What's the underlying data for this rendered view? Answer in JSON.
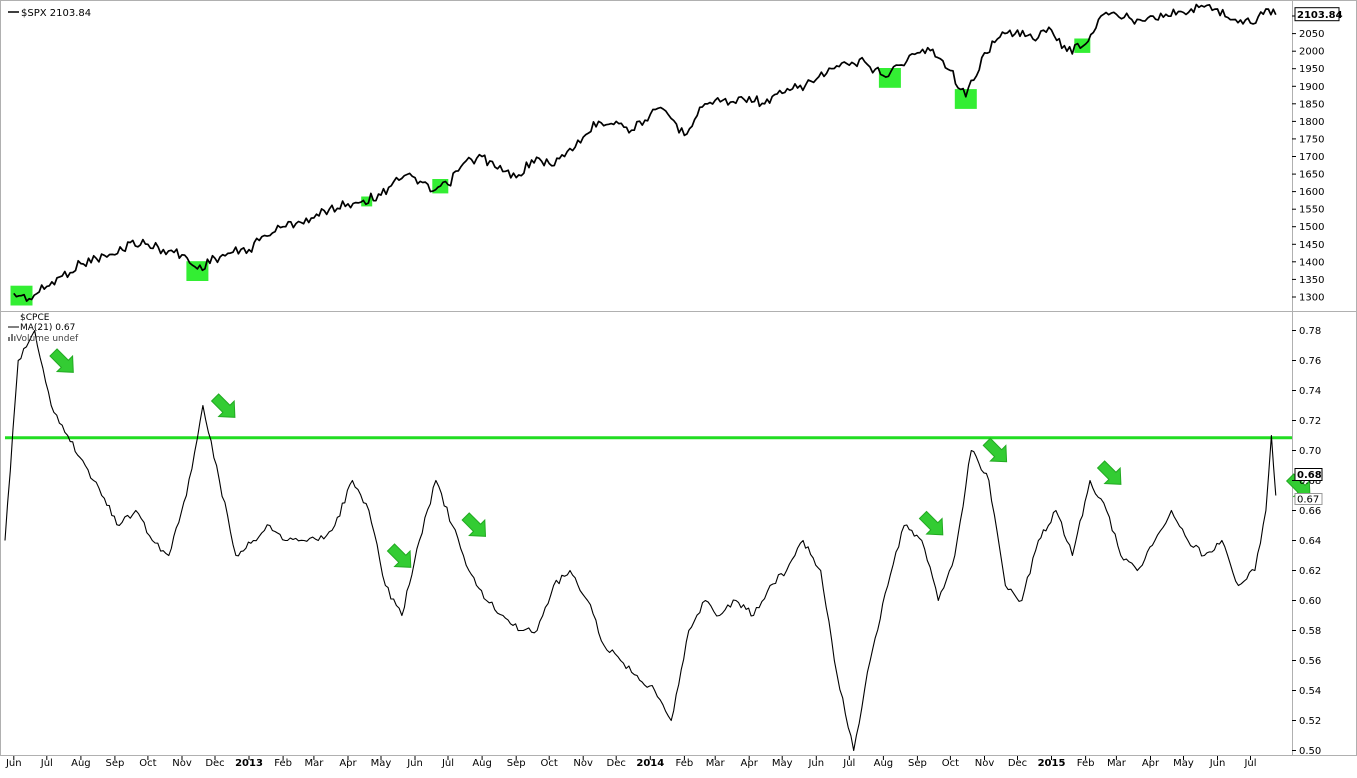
{
  "chart_data": [
    {
      "type": "line",
      "title": "$SPX 2103.84",
      "series": [
        {
          "name": "$SPX",
          "x": [
            "2012-06-01",
            "2012-06-15",
            "2012-07-01",
            "2012-07-15",
            "2012-08-01",
            "2012-08-15",
            "2012-09-01",
            "2012-09-15",
            "2012-10-01",
            "2012-10-15",
            "2012-11-01",
            "2012-11-15",
            "2012-12-01",
            "2012-12-15",
            "2013-01-01",
            "2013-01-15",
            "2013-02-01",
            "2013-02-15",
            "2013-03-01",
            "2013-03-15",
            "2013-04-01",
            "2013-04-15",
            "2013-05-01",
            "2013-05-15",
            "2013-06-01",
            "2013-06-15",
            "2013-07-01",
            "2013-07-15",
            "2013-08-01",
            "2013-08-15",
            "2013-09-01",
            "2013-09-15",
            "2013-10-01",
            "2013-10-15",
            "2013-11-01",
            "2013-11-15",
            "2013-12-01",
            "2013-12-15",
            "2014-01-01",
            "2014-01-15",
            "2014-02-01",
            "2014-02-15",
            "2014-03-01",
            "2014-03-15",
            "2014-04-01",
            "2014-04-15",
            "2014-05-01",
            "2014-05-15",
            "2014-06-01",
            "2014-06-15",
            "2014-07-01",
            "2014-07-15",
            "2014-08-01",
            "2014-08-15",
            "2014-09-01",
            "2014-09-15",
            "2014-10-01",
            "2014-10-15",
            "2014-11-01",
            "2014-11-15",
            "2014-12-01",
            "2014-12-15",
            "2015-01-01",
            "2015-01-15",
            "2015-02-01",
            "2015-02-15",
            "2015-03-01",
            "2015-03-15",
            "2015-04-01",
            "2015-04-15",
            "2015-05-01",
            "2015-05-15",
            "2015-06-01",
            "2015-06-15",
            "2015-07-01",
            "2015-07-15",
            "2015-07-24"
          ],
          "values": [
            1310,
            1295,
            1330,
            1360,
            1395,
            1410,
            1420,
            1455,
            1450,
            1435,
            1420,
            1380,
            1410,
            1425,
            1435,
            1475,
            1500,
            1515,
            1525,
            1550,
            1565,
            1575,
            1590,
            1640,
            1640,
            1600,
            1620,
            1680,
            1700,
            1665,
            1640,
            1690,
            1680,
            1700,
            1755,
            1800,
            1800,
            1775,
            1820,
            1830,
            1760,
            1840,
            1860,
            1855,
            1870,
            1850,
            1880,
            1895,
            1920,
            1950,
            1960,
            1970,
            1930,
            1960,
            1995,
            2005,
            1945,
            1870,
            1995,
            2040,
            2060,
            2035,
            2060,
            2000,
            2020,
            2100,
            2105,
            2090,
            2100,
            2105,
            2110,
            2125,
            2120,
            2090,
            2080,
            2120,
            2103.84
          ]
        }
      ],
      "ylim": [
        1260,
        2140
      ],
      "y_ticks": [
        "1300",
        "1350",
        "1400",
        "1450",
        "1500",
        "1550",
        "1600",
        "1650",
        "1700",
        "1750",
        "1800",
        "1850",
        "1900",
        "1950",
        "2000",
        "2050",
        "2100"
      ],
      "last_value_label": "2103.84",
      "highlight_dates": [
        "2012-06-08",
        "2012-11-15",
        "2013-04-18",
        "2013-06-24",
        "2014-02-03",
        "2014-08-07",
        "2014-10-15",
        "2015-01-29"
      ],
      "highlight_size": [
        "large",
        "large",
        "small",
        "medium",
        "none",
        "large",
        "large",
        "medium"
      ],
      "grid": false
    },
    {
      "type": "line",
      "labels": [
        "$CPCE",
        "MA(21) 0.67",
        "Volume undef"
      ],
      "series": [
        {
          "name": "MA(21)",
          "x": [
            "2012-05-24",
            "2012-06-05",
            "2012-06-20",
            "2012-07-05",
            "2012-07-20",
            "2012-08-05",
            "2012-08-20",
            "2012-09-05",
            "2012-09-20",
            "2012-10-05",
            "2012-10-20",
            "2012-11-05",
            "2012-11-20",
            "2012-12-05",
            "2012-12-20",
            "2013-01-05",
            "2013-01-20",
            "2013-02-05",
            "2013-02-20",
            "2013-03-05",
            "2013-03-20",
            "2013-04-05",
            "2013-04-20",
            "2013-05-05",
            "2013-05-20",
            "2013-06-05",
            "2013-06-20",
            "2013-07-05",
            "2013-07-20",
            "2013-08-05",
            "2013-08-20",
            "2013-09-05",
            "2013-09-20",
            "2013-10-05",
            "2013-10-20",
            "2013-11-05",
            "2013-11-20",
            "2013-12-05",
            "2013-12-20",
            "2014-01-05",
            "2014-01-20",
            "2014-02-05",
            "2014-02-20",
            "2014-03-05",
            "2014-03-20",
            "2014-04-05",
            "2014-04-20",
            "2014-05-05",
            "2014-05-20",
            "2014-06-05",
            "2014-06-20",
            "2014-07-05",
            "2014-07-20",
            "2014-08-05",
            "2014-08-20",
            "2014-09-05",
            "2014-09-20",
            "2014-10-05",
            "2014-10-20",
            "2014-11-05",
            "2014-11-20",
            "2014-12-05",
            "2014-12-20",
            "2015-01-05",
            "2015-01-20",
            "2015-02-05",
            "2015-02-20",
            "2015-03-05",
            "2015-03-20",
            "2015-04-05",
            "2015-04-20",
            "2015-05-05",
            "2015-05-20",
            "2015-06-05",
            "2015-06-20",
            "2015-07-05",
            "2015-07-15",
            "2015-07-20",
            "2015-07-24"
          ],
          "values": [
            0.64,
            0.76,
            0.78,
            0.73,
            0.71,
            0.69,
            0.67,
            0.65,
            0.66,
            0.64,
            0.63,
            0.67,
            0.73,
            0.68,
            0.63,
            0.64,
            0.65,
            0.64,
            0.64,
            0.64,
            0.65,
            0.68,
            0.66,
            0.61,
            0.59,
            0.64,
            0.68,
            0.65,
            0.62,
            0.6,
            0.59,
            0.58,
            0.58,
            0.61,
            0.62,
            0.6,
            0.57,
            0.56,
            0.55,
            0.54,
            0.52,
            0.58,
            0.6,
            0.59,
            0.6,
            0.59,
            0.61,
            0.62,
            0.64,
            0.62,
            0.55,
            0.5,
            0.56,
            0.61,
            0.65,
            0.64,
            0.6,
            0.63,
            0.7,
            0.68,
            0.61,
            0.6,
            0.64,
            0.66,
            0.63,
            0.68,
            0.66,
            0.63,
            0.62,
            0.64,
            0.66,
            0.64,
            0.63,
            0.64,
            0.61,
            0.62,
            0.66,
            0.71,
            0.67
          ]
        }
      ],
      "ylim": [
        0.497,
        0.793
      ],
      "y_ticks": [
        "0.50",
        "0.52",
        "0.54",
        "0.56",
        "0.58",
        "0.60",
        "0.62",
        "0.64",
        "0.66",
        "0.68",
        "0.70",
        "0.72",
        "0.74",
        "0.76",
        "0.78"
      ],
      "last_value_labels": [
        "0.68",
        "0.67"
      ],
      "horizontal_line": 0.7085,
      "arrow_dates": [
        "2012-06-28",
        "2012-11-22",
        "2013-05-01",
        "2013-07-08",
        "2014-08-28",
        "2014-10-25",
        "2015-02-06",
        "2015-07-28"
      ],
      "grid": false
    }
  ],
  "x_axis": {
    "start": "2012-05-24",
    "end": "2015-08-05",
    "ticks": [
      {
        "date": "2012-06-01",
        "label": "Jun",
        "bold": false
      },
      {
        "date": "2012-07-01",
        "label": "Jul",
        "bold": false
      },
      {
        "date": "2012-08-01",
        "label": "Aug",
        "bold": false
      },
      {
        "date": "2012-09-01",
        "label": "Sep",
        "bold": false
      },
      {
        "date": "2012-10-01",
        "label": "Oct",
        "bold": false
      },
      {
        "date": "2012-11-01",
        "label": "Nov",
        "bold": false
      },
      {
        "date": "2012-12-01",
        "label": "Dec",
        "bold": false
      },
      {
        "date": "2013-01-01",
        "label": "2013",
        "bold": true
      },
      {
        "date": "2013-02-01",
        "label": "Feb",
        "bold": false
      },
      {
        "date": "2013-03-01",
        "label": "Mar",
        "bold": false
      },
      {
        "date": "2013-04-01",
        "label": "Apr",
        "bold": false
      },
      {
        "date": "2013-05-01",
        "label": "May",
        "bold": false
      },
      {
        "date": "2013-06-01",
        "label": "Jun",
        "bold": false
      },
      {
        "date": "2013-07-01",
        "label": "Jul",
        "bold": false
      },
      {
        "date": "2013-08-01",
        "label": "Aug",
        "bold": false
      },
      {
        "date": "2013-09-01",
        "label": "Sep",
        "bold": false
      },
      {
        "date": "2013-10-01",
        "label": "Oct",
        "bold": false
      },
      {
        "date": "2013-11-01",
        "label": "Nov",
        "bold": false
      },
      {
        "date": "2013-12-01",
        "label": "Dec",
        "bold": false
      },
      {
        "date": "2014-01-01",
        "label": "2014",
        "bold": true
      },
      {
        "date": "2014-02-01",
        "label": "Feb",
        "bold": false
      },
      {
        "date": "2014-03-01",
        "label": "Mar",
        "bold": false
      },
      {
        "date": "2014-04-01",
        "label": "Apr",
        "bold": false
      },
      {
        "date": "2014-05-01",
        "label": "May",
        "bold": false
      },
      {
        "date": "2014-06-01",
        "label": "Jun",
        "bold": false
      },
      {
        "date": "2014-07-01",
        "label": "Jul",
        "bold": false
      },
      {
        "date": "2014-08-01",
        "label": "Aug",
        "bold": false
      },
      {
        "date": "2014-09-01",
        "label": "Sep",
        "bold": false
      },
      {
        "date": "2014-10-01",
        "label": "Oct",
        "bold": false
      },
      {
        "date": "2014-11-01",
        "label": "Nov",
        "bold": false
      },
      {
        "date": "2014-12-01",
        "label": "Dec",
        "bold": false
      },
      {
        "date": "2015-01-01",
        "label": "2015",
        "bold": true
      },
      {
        "date": "2015-02-01",
        "label": "Feb",
        "bold": false
      },
      {
        "date": "2015-03-01",
        "label": "Mar",
        "bold": false
      },
      {
        "date": "2015-04-01",
        "label": "Apr",
        "bold": false
      },
      {
        "date": "2015-05-01",
        "label": "May",
        "bold": false
      },
      {
        "date": "2015-06-01",
        "label": "Jun",
        "bold": false
      },
      {
        "date": "2015-07-01",
        "label": "Jul",
        "bold": false
      }
    ]
  },
  "colors": {
    "line": "#000000",
    "highlight": "#33ee33",
    "arrow": "#33cc33",
    "arrow_stroke": "#22aa22",
    "threshold": "#22dd22",
    "border": "#b0b0b0",
    "text": "#000000",
    "label_bg": "#ffffff"
  }
}
